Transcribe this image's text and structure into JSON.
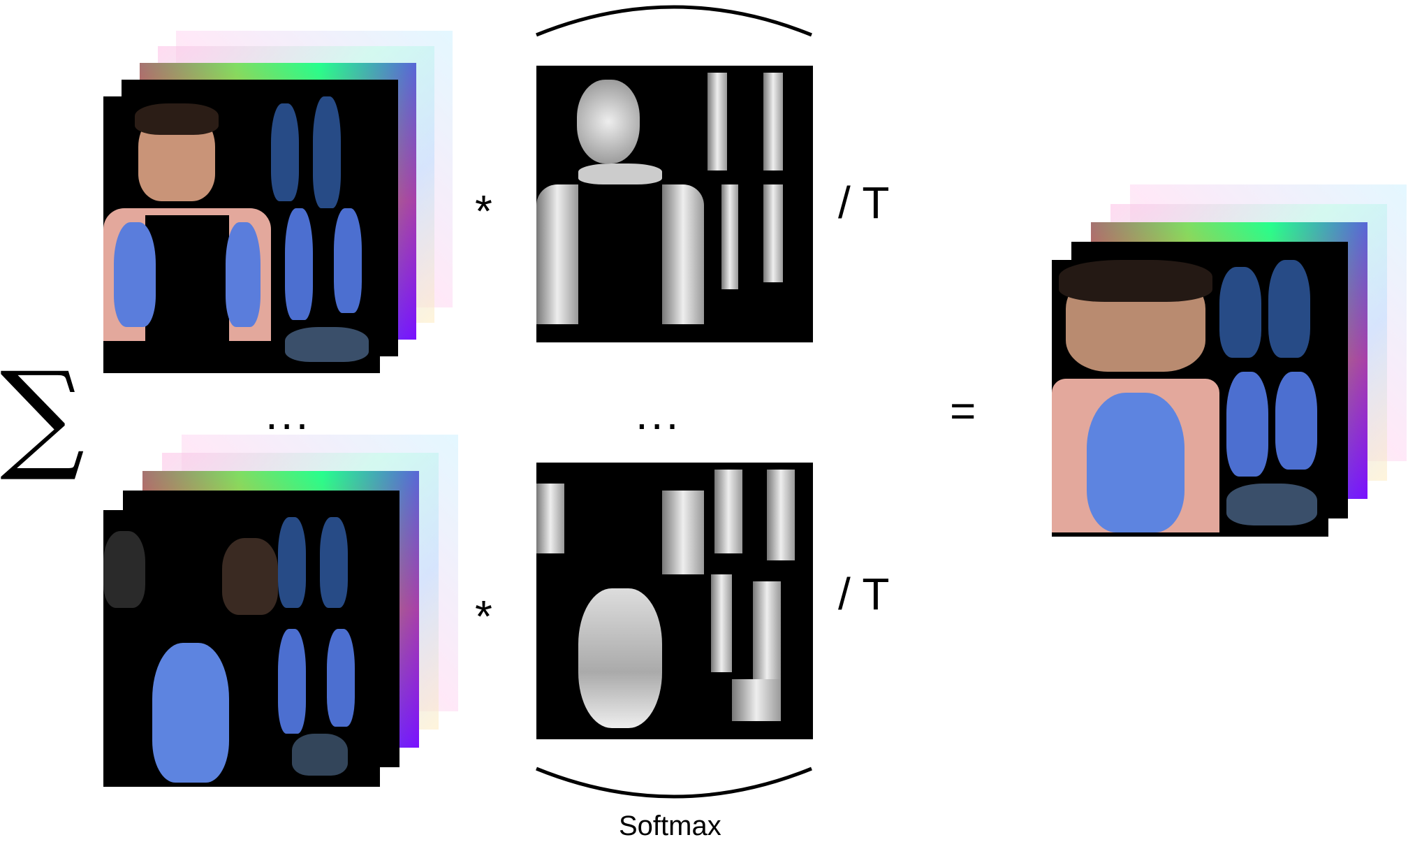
{
  "diagram": {
    "sum_symbol": "∑",
    "multiply_symbol": "*",
    "divide_label": "/ T",
    "ellipsis": "...",
    "equals_symbol": "=",
    "softmax_label": "Softmax"
  }
}
